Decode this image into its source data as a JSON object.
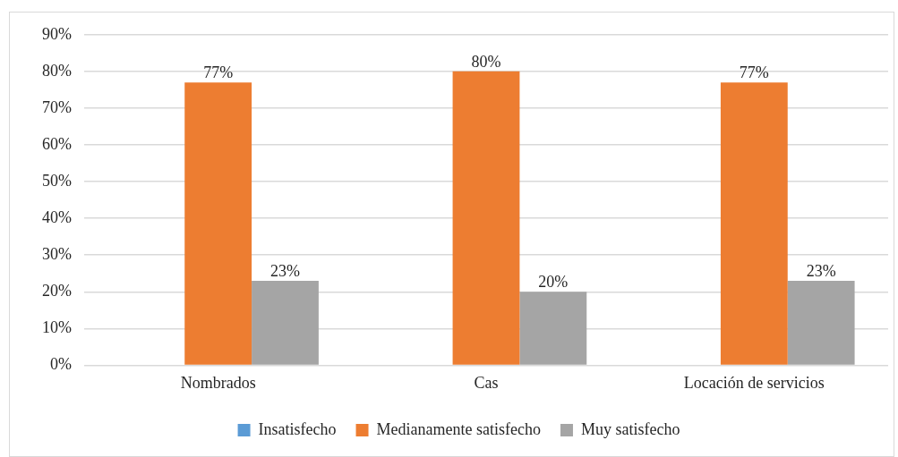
{
  "chart_data": {
    "type": "bar",
    "categories": [
      "Nombrados",
      "Cas",
      "Locación de servicios"
    ],
    "series": [
      {
        "name": "Insatisfecho",
        "color": "#5b9bd5",
        "values": [
          0,
          0,
          0
        ],
        "value_labels": [
          null,
          null,
          null
        ]
      },
      {
        "name": "Medianamente satisfecho",
        "color": "#ed7d31",
        "values": [
          77,
          80,
          77
        ],
        "value_labels": [
          "77%",
          "80%",
          "77%"
        ]
      },
      {
        "name": "Muy satisfecho",
        "color": "#a5a5a5",
        "values": [
          23,
          20,
          23
        ],
        "value_labels": [
          "23%",
          "20%",
          "23%"
        ]
      }
    ],
    "ylim": [
      0,
      90
    ],
    "yticks": [
      {
        "value": 0,
        "label": "0%"
      },
      {
        "value": 10,
        "label": "10%"
      },
      {
        "value": 20,
        "label": "20%"
      },
      {
        "value": 30,
        "label": "30%"
      },
      {
        "value": 40,
        "label": "40%"
      },
      {
        "value": 50,
        "label": "50%"
      },
      {
        "value": 60,
        "label": "60%"
      },
      {
        "value": 70,
        "label": "70%"
      },
      {
        "value": 80,
        "label": "80%"
      },
      {
        "value": 90,
        "label": "90%"
      }
    ],
    "grid": "y",
    "legend": "bottom"
  }
}
